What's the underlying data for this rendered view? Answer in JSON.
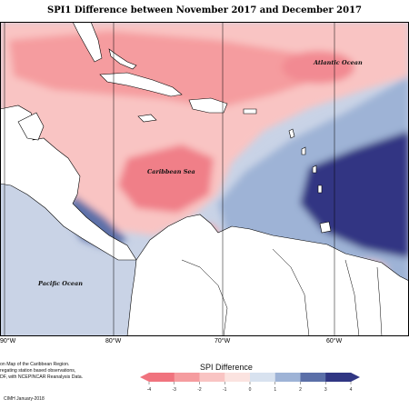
{
  "title": "SPI1 Difference between November 2017 and December 2017",
  "map_labels": {
    "atlantic": "Atlantic Ocean",
    "caribbean": "Caribbean Sea",
    "pacific": "Pacific Ocean"
  },
  "longitude_labels": [
    "90°W",
    "80°W",
    "70°W",
    "60°W"
  ],
  "caption_lines": [
    "on Map of the Caribbean Region.",
    "regating station based observations,",
    "DF, with NCEPINCAR Reanalysis Data."
  ],
  "credit": "CIMH January-2018",
  "legend": {
    "title": "SPI Difference",
    "ticks": [
      "-4",
      "-3",
      "-2",
      "-1",
      "0",
      "1",
      "2",
      "3",
      "4"
    ],
    "colors": [
      "#f0737e",
      "#f59c9f",
      "#f9c4c3",
      "#fbe3e0",
      "#ffffff",
      "#d8e2ef",
      "#9eb3d6",
      "#5b6fa8",
      "#303683"
    ]
  },
  "colors": {
    "strong_negative": "#f0737e",
    "weak_negative": "#f9c4c3",
    "neutral": "#ffffff",
    "weak_positive": "#9eb3d6",
    "strong_positive": "#303683",
    "land": "#ffffff",
    "coast": "#000000"
  }
}
